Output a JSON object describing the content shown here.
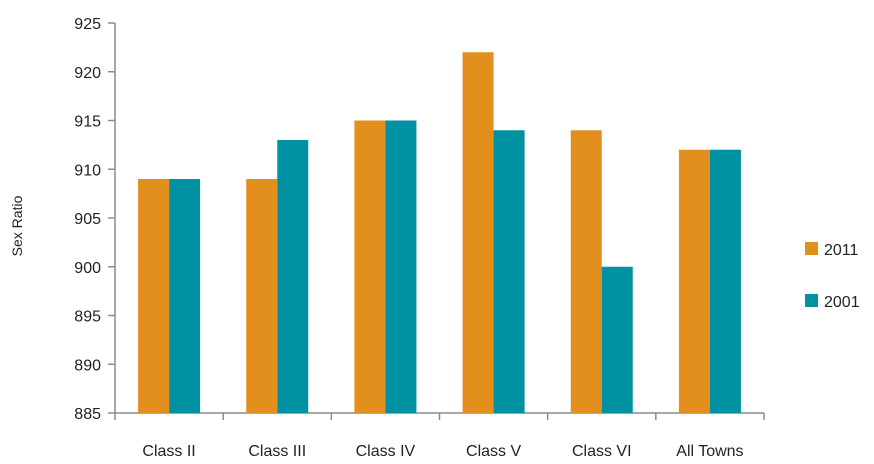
{
  "chart_data": {
    "type": "bar",
    "title": "",
    "xlabel": "",
    "ylabel": "Sex Ratio",
    "ylim": [
      885,
      925
    ],
    "yticks": [
      885,
      890,
      895,
      900,
      905,
      910,
      915,
      920,
      925
    ],
    "categories": [
      "Class II",
      "Class III",
      "Class IV",
      "Class V",
      "Class VI",
      "All Towns"
    ],
    "series": [
      {
        "name": "2011",
        "color": "#E28F1E",
        "values": [
          909,
          909,
          915,
          922,
          914,
          912
        ]
      },
      {
        "name": "2001",
        "color": "#0092A3",
        "values": [
          909,
          913,
          915,
          914,
          900,
          912
        ]
      }
    ],
    "legend_position": "right",
    "grid": false
  }
}
